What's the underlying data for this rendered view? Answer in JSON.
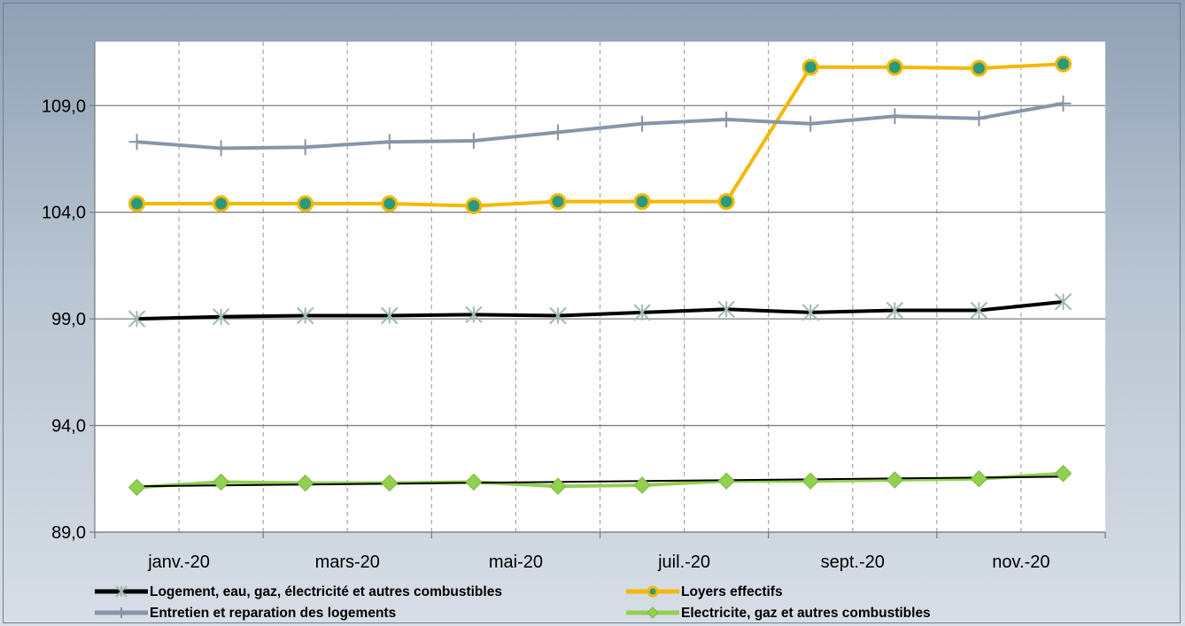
{
  "chart_data": {
    "type": "line",
    "title": "",
    "xlabel": "",
    "ylabel": "",
    "ylim": [
      89.0,
      112.0
    ],
    "yticks": [
      "89,0",
      "94,0",
      "99,0",
      "104,0",
      "109,0"
    ],
    "xtick_labels": [
      "janv.-20",
      "mars-20",
      "mai-20",
      "juil.-20",
      "sept.-20",
      "nov.-20"
    ],
    "x": [
      "janv.-20",
      "févr.-20",
      "mars-20",
      "avr.-20",
      "mai-20",
      "juin-20",
      "juil.-20",
      "août-20",
      "sept.-20",
      "oct.-20",
      "nov.-20",
      "déc.-20"
    ],
    "grid": {
      "horizontal": true,
      "vertical_dashed": true
    },
    "legend_position": "bottom",
    "series": [
      {
        "name": "Logement, eau, gaz, électricité et autres combustibles",
        "color": "#000000",
        "marker": "asterisk",
        "marker_color": "#9fb9ad",
        "values": [
          99.0,
          99.1,
          99.15,
          99.15,
          99.2,
          99.15,
          99.3,
          99.45,
          99.3,
          99.4,
          99.4,
          99.8
        ]
      },
      {
        "name": "Loyers effectifs",
        "color": "#f4b800",
        "marker": "circle",
        "marker_color": "#2a9a7e",
        "values": [
          104.4,
          104.4,
          104.4,
          104.4,
          104.3,
          104.5,
          104.5,
          104.5,
          110.8,
          110.8,
          110.75,
          110.95
        ]
      },
      {
        "name": "Entretien et reparation des logements",
        "color": "#8796a8",
        "marker": "plus",
        "marker_color": "#8796a8",
        "values": [
          107.3,
          107.0,
          107.05,
          107.3,
          107.35,
          107.75,
          108.15,
          108.35,
          108.15,
          108.5,
          108.4,
          109.1
        ]
      },
      {
        "name": "Electricite, gaz et autres combustibles",
        "color": "#92d050",
        "marker": "diamond",
        "marker_color": "#92d050",
        "values": [
          91.1,
          91.35,
          91.3,
          91.3,
          91.35,
          91.15,
          91.2,
          91.4,
          91.4,
          91.45,
          91.5,
          91.75
        ]
      }
    ],
    "trendline": {
      "series": "Electricite, gaz et autres combustibles",
      "color": "#000000",
      "start": 91.15,
      "end": 91.6
    }
  }
}
